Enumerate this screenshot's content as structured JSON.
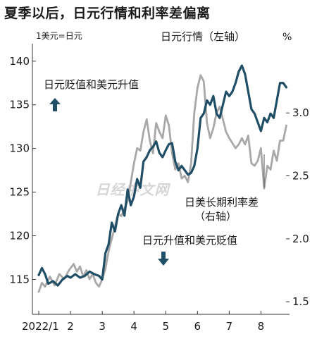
{
  "page_title": "夏季以后，日元行情和利率差偏离",
  "chart_data": {
    "type": "line",
    "title": "夏季以后，日元行情和利率差偏离",
    "left_axis": {
      "unit_label": "1美元=日元",
      "ticks": [
        115,
        120,
        125,
        130,
        135,
        140
      ],
      "range": [
        111,
        142
      ]
    },
    "right_axis": {
      "unit_label": "%",
      "ticks": [
        1.5,
        2.0,
        2.5,
        3.0
      ],
      "range": [
        1.4,
        3.55
      ]
    },
    "x_axis": {
      "tick_labels": [
        "2022/1",
        "2",
        "3",
        "4",
        "5",
        "6",
        "7",
        "8"
      ],
      "tick_months": [
        1,
        2,
        3,
        4,
        5,
        6,
        7,
        8
      ],
      "range": [
        0.8,
        8.9
      ]
    },
    "series": [
      {
        "name": "日元行情（左轴）",
        "axis": "left",
        "color": "#1f4e66",
        "x": [
          1.0,
          1.1,
          1.2,
          1.3,
          1.45,
          1.6,
          1.75,
          1.9,
          2.0,
          2.15,
          2.3,
          2.45,
          2.6,
          2.75,
          2.9,
          3.0,
          3.1,
          3.2,
          3.3,
          3.4,
          3.5,
          3.6,
          3.7,
          3.8,
          3.9,
          4.0,
          4.1,
          4.2,
          4.3,
          4.4,
          4.5,
          4.6,
          4.7,
          4.8,
          4.9,
          5.0,
          5.1,
          5.2,
          5.3,
          5.4,
          5.5,
          5.6,
          5.7,
          5.8,
          5.9,
          6.0,
          6.1,
          6.2,
          6.3,
          6.4,
          6.5,
          6.6,
          6.7,
          6.8,
          6.9,
          7.0,
          7.1,
          7.2,
          7.3,
          7.4,
          7.5,
          7.6,
          7.7,
          7.8,
          7.9,
          8.0,
          8.1,
          8.2,
          8.3,
          8.4,
          8.5,
          8.6,
          8.7,
          8.8
        ],
        "y": [
          115.5,
          116.3,
          115.6,
          114.5,
          114.8,
          114.3,
          115.0,
          115.4,
          115.2,
          115.6,
          115.2,
          115.4,
          115.9,
          115.6,
          115.4,
          115.0,
          118.0,
          119.0,
          121.5,
          120.5,
          122.5,
          123.5,
          122.3,
          125.3,
          123.5,
          124.5,
          126.5,
          125.5,
          128.5,
          129.0,
          129.8,
          130.2,
          130.8,
          129.5,
          129.0,
          129.8,
          130.5,
          130.6,
          128.5,
          127.5,
          128.0,
          127.5,
          127.0,
          127.2,
          128.0,
          130.0,
          133.5,
          134.0,
          135.5,
          135.0,
          136.0,
          134.0,
          133.5,
          135.0,
          136.5,
          136.0,
          136.5,
          137.5,
          138.8,
          139.5,
          138.5,
          136.5,
          134.5,
          134.0,
          133.0,
          132.0,
          133.5,
          133.0,
          134.0,
          133.5,
          135.5,
          137.5,
          137.5,
          137.0
        ]
      },
      {
        "name": "日美长期利率差（右轴）",
        "axis": "right",
        "color": "#a8a8a8",
        "x": [
          1.0,
          1.1,
          1.2,
          1.35,
          1.5,
          1.65,
          1.8,
          1.95,
          2.1,
          2.2,
          2.3,
          2.4,
          2.5,
          2.6,
          2.7,
          2.8,
          2.9,
          3.0,
          3.1,
          3.2,
          3.3,
          3.4,
          3.5,
          3.6,
          3.7,
          3.8,
          3.9,
          4.0,
          4.1,
          4.2,
          4.3,
          4.4,
          4.5,
          4.6,
          4.7,
          4.8,
          4.9,
          5.0,
          5.1,
          5.2,
          5.3,
          5.4,
          5.5,
          5.6,
          5.7,
          5.8,
          5.9,
          6.0,
          6.1,
          6.2,
          6.3,
          6.4,
          6.5,
          6.6,
          6.7,
          6.8,
          6.9,
          7.0,
          7.1,
          7.2,
          7.3,
          7.4,
          7.5,
          7.6,
          7.7,
          7.8,
          7.9,
          8.0,
          8.1,
          8.2,
          8.3,
          8.4,
          8.5,
          8.6,
          8.7,
          8.8
        ],
        "y": [
          1.58,
          1.65,
          1.62,
          1.7,
          1.63,
          1.72,
          1.68,
          1.75,
          1.8,
          1.74,
          1.78,
          1.7,
          1.75,
          1.68,
          1.72,
          1.65,
          1.62,
          1.68,
          1.76,
          1.9,
          2.0,
          2.1,
          2.2,
          2.18,
          2.24,
          2.3,
          2.45,
          2.6,
          2.72,
          2.7,
          2.85,
          2.95,
          2.78,
          2.68,
          2.92,
          2.85,
          2.8,
          2.98,
          2.9,
          2.68,
          2.55,
          2.6,
          2.48,
          2.5,
          2.45,
          2.6,
          3.0,
          3.2,
          3.3,
          3.25,
          2.92,
          2.8,
          2.88,
          3.0,
          3.05,
          2.95,
          2.85,
          2.8,
          2.76,
          2.72,
          2.75,
          2.8,
          2.75,
          2.82,
          2.6,
          2.58,
          2.62,
          2.72,
          2.4,
          2.58,
          2.55,
          2.7,
          2.62,
          2.78,
          2.78,
          2.9
        ]
      }
    ],
    "annotations": [
      {
        "text": "日元行情（左轴）",
        "target": "日元行情（左轴）"
      },
      {
        "text": "日美长期利率差",
        "text_line2": "（右轴）",
        "target": "日美长期利率差（右轴）"
      },
      {
        "text": "日元贬值和美元升值",
        "arrow": "up"
      },
      {
        "text": "日元升值和美元贬值",
        "arrow": "down"
      }
    ],
    "watermark": "日经中文网",
    "grid": false,
    "legend": "none",
    "colors": {
      "primary": "#1f4e66",
      "secondary": "#a8a8a8",
      "axis": "#333333",
      "arrow": "#1f4e66",
      "watermark": "#d6d6d6"
    }
  }
}
